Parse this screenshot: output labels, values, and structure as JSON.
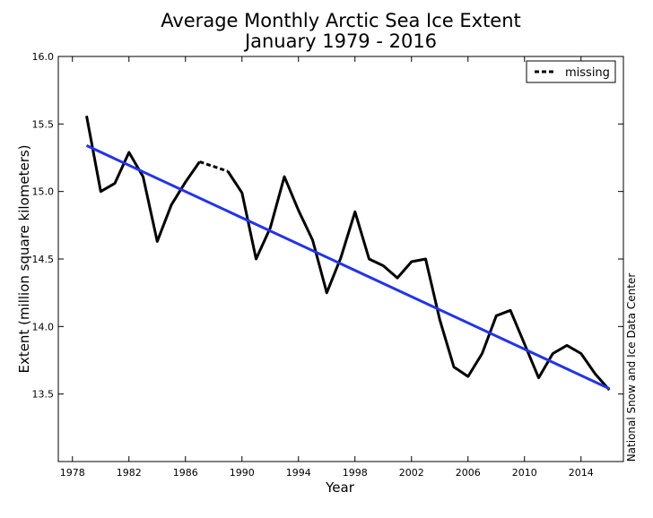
{
  "chart_data": {
    "type": "line",
    "title": "Average Monthly Arctic Sea Ice Extent",
    "subtitle": "January 1979 - 2016",
    "xlabel": "Year",
    "ylabel": "Extent (million square kilometers)",
    "xlim": [
      1977,
      2017
    ],
    "ylim": [
      13.0,
      16.0
    ],
    "xticks": [
      "1978",
      "1982",
      "1986",
      "1990",
      "1994",
      "1998",
      "2002",
      "2006",
      "2010",
      "2014"
    ],
    "yticks": [
      "13.5",
      "14.0",
      "14.5",
      "15.0",
      "15.5",
      "16.0"
    ],
    "legend_position": "top-right",
    "grid": false,
    "series": [
      {
        "name": "",
        "color": "#000000",
        "style": "solid",
        "segments": [
          {
            "x": [
              1979,
              1980,
              1981,
              1982,
              1983,
              1984,
              1985,
              1986,
              1987
            ],
            "y": [
              15.56,
              15.0,
              15.06,
              15.29,
              15.11,
              14.63,
              14.9,
              15.07,
              15.22
            ]
          },
          {
            "x": [
              1989,
              1990,
              1991,
              1992,
              1993,
              1994,
              1995,
              1996,
              1997,
              1998,
              1999,
              2000,
              2001,
              2002,
              2003,
              2004,
              2005,
              2006,
              2007,
              2008,
              2009,
              2010,
              2011,
              2012,
              2013,
              2014,
              2015,
              2016
            ],
            "y": [
              15.15,
              14.99,
              14.5,
              14.73,
              15.11,
              14.86,
              14.64,
              14.25,
              14.51,
              14.85,
              14.5,
              14.45,
              14.36,
              14.48,
              14.5,
              14.05,
              13.7,
              13.63,
              13.8,
              14.08,
              14.12,
              13.87,
              13.62,
              13.8,
              13.86,
              13.8,
              13.65,
              13.53
            ]
          }
        ]
      },
      {
        "name": "missing",
        "color": "#000000",
        "style": "dashed",
        "x": [
          1987,
          1989
        ],
        "y": [
          15.22,
          15.15
        ]
      },
      {
        "name": "",
        "color": "#2233ee",
        "style": "solid",
        "x": [
          1979,
          2016
        ],
        "y": [
          15.34,
          13.54
        ]
      }
    ],
    "credit": "National Snow and Ice Data Center"
  }
}
